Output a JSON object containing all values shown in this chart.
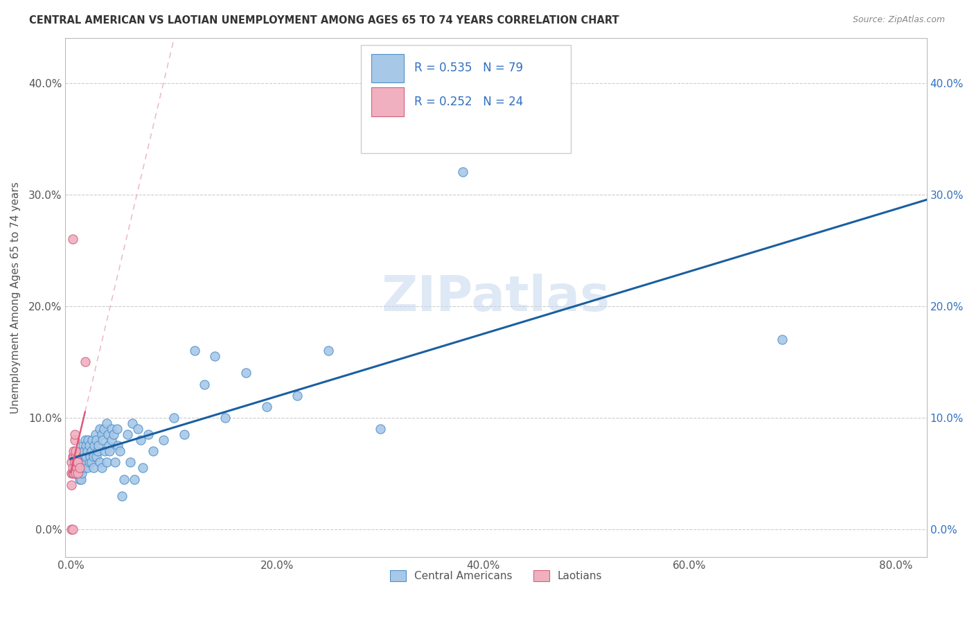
{
  "title": "CENTRAL AMERICAN VS LAOTIAN UNEMPLOYMENT AMONG AGES 65 TO 74 YEARS CORRELATION CHART",
  "source": "Source: ZipAtlas.com",
  "ylabel": "Unemployment Among Ages 65 to 74 years",
  "xlabel_ticks": [
    "0.0%",
    "20.0%",
    "40.0%",
    "60.0%",
    "80.0%"
  ],
  "xlabel_vals": [
    0.0,
    0.2,
    0.4,
    0.6,
    0.8
  ],
  "ylabel_ticks": [
    "0.0%",
    "10.0%",
    "20.0%",
    "30.0%",
    "40.0%"
  ],
  "ylabel_vals": [
    0.0,
    0.1,
    0.2,
    0.3,
    0.4
  ],
  "xlim": [
    -0.005,
    0.83
  ],
  "ylim": [
    -0.025,
    0.44
  ],
  "blue_R": 0.535,
  "blue_N": 79,
  "pink_R": 0.252,
  "pink_N": 24,
  "blue_scatter_color": "#a8c8e8",
  "blue_edge_color": "#5090c8",
  "pink_scatter_color": "#f0b0c0",
  "pink_edge_color": "#d06080",
  "blue_line_color": "#1a5fa0",
  "pink_line_color": "#e05878",
  "pink_dash_color": "#e8a0b0",
  "grid_color": "#cccccc",
  "legend_text_color": "#3070c0",
  "blue_scatter_x": [
    0.005,
    0.007,
    0.008,
    0.008,
    0.009,
    0.01,
    0.01,
    0.01,
    0.011,
    0.011,
    0.012,
    0.012,
    0.013,
    0.013,
    0.014,
    0.014,
    0.015,
    0.015,
    0.016,
    0.016,
    0.017,
    0.018,
    0.018,
    0.019,
    0.02,
    0.02,
    0.021,
    0.022,
    0.022,
    0.023,
    0.024,
    0.025,
    0.025,
    0.026,
    0.027,
    0.028,
    0.028,
    0.03,
    0.03,
    0.031,
    0.032,
    0.033,
    0.035,
    0.035,
    0.036,
    0.037,
    0.038,
    0.04,
    0.04,
    0.042,
    0.043,
    0.045,
    0.046,
    0.048,
    0.05,
    0.052,
    0.055,
    0.058,
    0.06,
    0.062,
    0.065,
    0.068,
    0.07,
    0.075,
    0.08,
    0.09,
    0.1,
    0.11,
    0.12,
    0.13,
    0.14,
    0.15,
    0.17,
    0.19,
    0.22,
    0.25,
    0.3,
    0.38,
    0.69
  ],
  "blue_scatter_y": [
    0.05,
    0.055,
    0.05,
    0.06,
    0.045,
    0.055,
    0.065,
    0.045,
    0.07,
    0.05,
    0.06,
    0.075,
    0.055,
    0.07,
    0.06,
    0.08,
    0.065,
    0.075,
    0.055,
    0.07,
    0.08,
    0.06,
    0.075,
    0.065,
    0.07,
    0.06,
    0.08,
    0.065,
    0.055,
    0.075,
    0.085,
    0.065,
    0.08,
    0.07,
    0.075,
    0.09,
    0.06,
    0.085,
    0.055,
    0.08,
    0.09,
    0.07,
    0.095,
    0.06,
    0.085,
    0.075,
    0.07,
    0.09,
    0.08,
    0.085,
    0.06,
    0.09,
    0.075,
    0.07,
    0.03,
    0.045,
    0.085,
    0.06,
    0.095,
    0.045,
    0.09,
    0.08,
    0.055,
    0.085,
    0.07,
    0.08,
    0.1,
    0.085,
    0.16,
    0.13,
    0.155,
    0.1,
    0.14,
    0.11,
    0.12,
    0.16,
    0.09,
    0.32,
    0.17
  ],
  "pink_scatter_x": [
    0.001,
    0.001,
    0.001,
    0.001,
    0.002,
    0.002,
    0.002,
    0.002,
    0.002,
    0.003,
    0.003,
    0.003,
    0.004,
    0.004,
    0.004,
    0.005,
    0.005,
    0.005,
    0.006,
    0.006,
    0.007,
    0.007,
    0.009,
    0.014
  ],
  "pink_scatter_y": [
    0.04,
    0.05,
    0.06,
    0.0,
    0.05,
    0.055,
    0.065,
    0.0,
    0.26,
    0.05,
    0.065,
    0.07,
    0.06,
    0.08,
    0.085,
    0.05,
    0.065,
    0.07,
    0.055,
    0.06,
    0.05,
    0.06,
    0.055,
    0.15
  ],
  "blue_line_x0": 0.0,
  "blue_line_x1": 0.83,
  "pink_line_x0": 0.0,
  "pink_line_x1": 0.45
}
